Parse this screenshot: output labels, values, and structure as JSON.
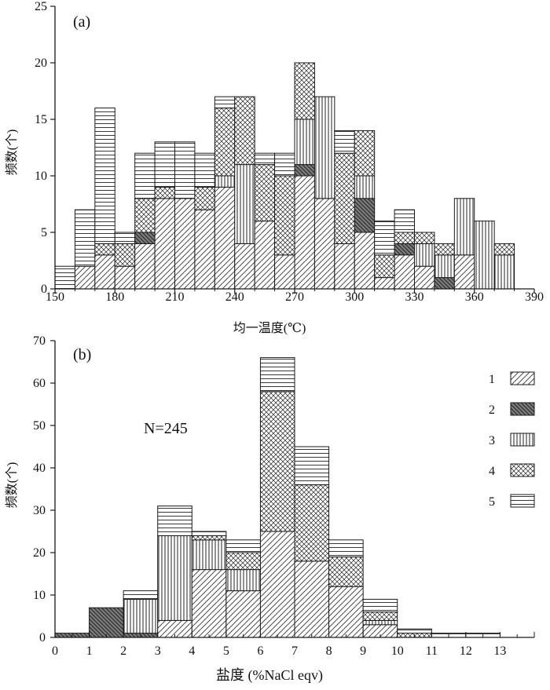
{
  "colors": {
    "ink": "#1a1a1a",
    "type2_fill": "#7d7d7d"
  },
  "chart_data": [
    {
      "panel": "a",
      "type": "bar",
      "stacked": true,
      "panel_label": "(a)",
      "xlabel": "均一温度(℃)",
      "ylabel": "频数(个)",
      "xlim": [
        150,
        390
      ],
      "ylim": [
        0,
        25
      ],
      "xticks": [
        "150",
        "180",
        "210",
        "240",
        "270",
        "300",
        "330",
        "360",
        "390"
      ],
      "yticks": [
        "0",
        "5",
        "10",
        "15",
        "20",
        "25"
      ],
      "bin_width": 10,
      "bins": [
        {
          "x0": 150,
          "counts": {
            "1": 0,
            "2": 0,
            "3": 0,
            "4": 0,
            "5": 2
          }
        },
        {
          "x0": 160,
          "counts": {
            "1": 2,
            "2": 0,
            "3": 0,
            "4": 0,
            "5": 5
          }
        },
        {
          "x0": 170,
          "counts": {
            "1": 3,
            "2": 0,
            "3": 0,
            "4": 1,
            "5": 12
          }
        },
        {
          "x0": 180,
          "counts": {
            "1": 2,
            "2": 0,
            "3": 0,
            "4": 2,
            "5": 1
          }
        },
        {
          "x0": 190,
          "counts": {
            "1": 4,
            "2": 1,
            "3": 0,
            "4": 3,
            "5": 4
          }
        },
        {
          "x0": 200,
          "counts": {
            "1": 8,
            "2": 0,
            "3": 0,
            "4": 1,
            "5": 4
          }
        },
        {
          "x0": 210,
          "counts": {
            "1": 8,
            "2": 0,
            "3": 0,
            "4": 0,
            "5": 5
          }
        },
        {
          "x0": 220,
          "counts": {
            "1": 7,
            "2": 0,
            "3": 0,
            "4": 2,
            "5": 3
          }
        },
        {
          "x0": 230,
          "counts": {
            "1": 9,
            "2": 0,
            "3": 1,
            "4": 6,
            "5": 1
          }
        },
        {
          "x0": 240,
          "counts": {
            "1": 4,
            "2": 0,
            "3": 7,
            "4": 6,
            "5": 0
          }
        },
        {
          "x0": 250,
          "counts": {
            "1": 6,
            "2": 0,
            "3": 0,
            "4": 5,
            "5": 1
          }
        },
        {
          "x0": 260,
          "counts": {
            "1": 3,
            "2": 0,
            "3": 0,
            "4": 7,
            "5": 2
          }
        },
        {
          "x0": 270,
          "counts": {
            "1": 10,
            "2": 1,
            "3": 4,
            "4": 5,
            "5": 0
          }
        },
        {
          "x0": 280,
          "counts": {
            "1": 8,
            "2": 0,
            "3": 9,
            "4": 0,
            "5": 0
          }
        },
        {
          "x0": 290,
          "counts": {
            "1": 4,
            "2": 0,
            "3": 0,
            "4": 8,
            "5": 2
          }
        },
        {
          "x0": 300,
          "counts": {
            "1": 5,
            "2": 3,
            "3": 2,
            "4": 4,
            "5": 0
          }
        },
        {
          "x0": 310,
          "counts": {
            "1": 1,
            "2": 0,
            "3": 0,
            "4": 2,
            "5": 3
          }
        },
        {
          "x0": 320,
          "counts": {
            "1": 3,
            "2": 1,
            "3": 0,
            "4": 1,
            "5": 2
          }
        },
        {
          "x0": 330,
          "counts": {
            "1": 2,
            "2": 0,
            "3": 2,
            "4": 1,
            "5": 0
          }
        },
        {
          "x0": 340,
          "counts": {
            "1": 0,
            "2": 1,
            "3": 2,
            "4": 1,
            "5": 0
          }
        },
        {
          "x0": 350,
          "counts": {
            "1": 3,
            "2": 0,
            "3": 5,
            "4": 0,
            "5": 0
          }
        },
        {
          "x0": 360,
          "counts": {
            "1": 0,
            "2": 0,
            "3": 6,
            "4": 0,
            "5": 0
          }
        },
        {
          "x0": 370,
          "counts": {
            "1": 0,
            "2": 0,
            "3": 3,
            "4": 1,
            "5": 0
          }
        }
      ]
    },
    {
      "panel": "b",
      "type": "bar",
      "stacked": true,
      "panel_label": "(b)",
      "annotation": "N=245",
      "xlabel": "盐度 (%NaCl eqv)",
      "ylabel": "频数(个)",
      "xlim": [
        0,
        14
      ],
      "ylim": [
        0,
        70
      ],
      "xticks": [
        "0",
        "1",
        "2",
        "3",
        "4",
        "5",
        "6",
        "7",
        "8",
        "9",
        "10",
        "11",
        "12",
        "13"
      ],
      "yticks": [
        "0",
        "10",
        "20",
        "30",
        "40",
        "50",
        "60",
        "70"
      ],
      "bin_width": 1,
      "bins": [
        {
          "x0": 0,
          "counts": {
            "1": 0,
            "2": 1,
            "3": 0,
            "4": 0,
            "5": 0
          }
        },
        {
          "x0": 1,
          "counts": {
            "1": 0,
            "2": 7,
            "3": 0,
            "4": 0,
            "5": 0
          }
        },
        {
          "x0": 2,
          "counts": {
            "1": 0,
            "2": 1,
            "3": 8,
            "4": 0,
            "5": 2
          }
        },
        {
          "x0": 3,
          "counts": {
            "1": 4,
            "2": 0,
            "3": 20,
            "4": 0,
            "5": 7
          }
        },
        {
          "x0": 4,
          "counts": {
            "1": 16,
            "2": 0,
            "3": 7,
            "4": 1,
            "5": 1
          }
        },
        {
          "x0": 5,
          "counts": {
            "1": 11,
            "2": 0,
            "3": 5,
            "4": 4,
            "5": 3
          }
        },
        {
          "x0": 6,
          "counts": {
            "1": 25,
            "2": 0,
            "3": 0,
            "4": 33,
            "5": 8
          }
        },
        {
          "x0": 7,
          "counts": {
            "1": 18,
            "2": 0,
            "3": 0,
            "4": 18,
            "5": 9
          }
        },
        {
          "x0": 8,
          "counts": {
            "1": 12,
            "2": 0,
            "3": 0,
            "4": 7,
            "5": 4
          }
        },
        {
          "x0": 9,
          "counts": {
            "1": 3,
            "2": 0,
            "3": 1,
            "4": 2,
            "5": 3
          }
        },
        {
          "x0": 10,
          "counts": {
            "1": 0,
            "2": 0,
            "3": 0,
            "4": 1,
            "5": 1
          }
        },
        {
          "x0": 11,
          "counts": {
            "1": 0,
            "2": 0,
            "3": 0,
            "4": 0,
            "5": 1
          }
        },
        {
          "x0": 12,
          "counts": {
            "1": 0,
            "2": 0,
            "3": 0,
            "4": 0,
            "5": 1
          }
        }
      ],
      "legend": {
        "position": "right",
        "labels": [
          "1",
          "2",
          "3",
          "4",
          "5"
        ]
      }
    }
  ]
}
